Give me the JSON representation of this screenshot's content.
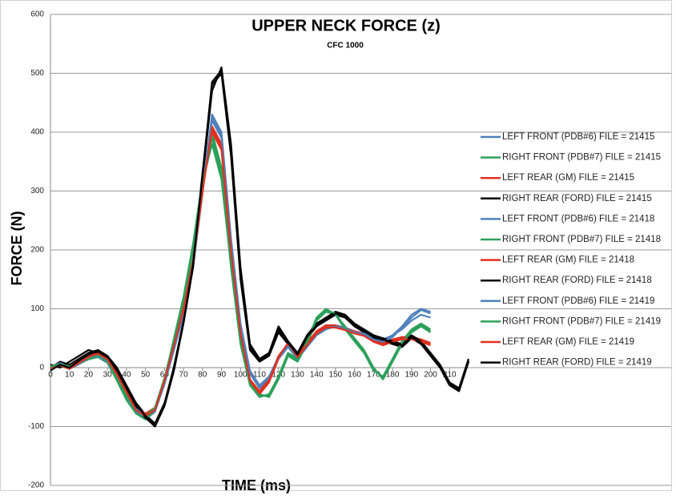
{
  "chart_data": {
    "type": "line",
    "title": "UPPER NECK FORCE (z)",
    "subtitle": "CFC 1000",
    "x_label": "TIME (ms)",
    "y_label": "FORCE (N)",
    "xlim": [
      0,
      220
    ],
    "xticks": [
      0,
      10,
      20,
      30,
      40,
      50,
      60,
      70,
      80,
      90,
      100,
      110,
      120,
      130,
      140,
      150,
      160,
      170,
      180,
      190,
      200,
      210
    ],
    "ylim": [
      -200,
      600
    ],
    "yticks": [
      -200,
      -100,
      0,
      100,
      200,
      300,
      400,
      500,
      600
    ],
    "grid": true,
    "legend": "right",
    "x": [
      0,
      5,
      10,
      15,
      20,
      25,
      30,
      35,
      40,
      45,
      50,
      55,
      60,
      65,
      70,
      75,
      80,
      85,
      90,
      95,
      100,
      105,
      110,
      115,
      120,
      125,
      130,
      135,
      140,
      145,
      150,
      155,
      160,
      165,
      170,
      175,
      180,
      185,
      190,
      195,
      200,
      205,
      210,
      215,
      220
    ],
    "series": [
      {
        "name": "LEFT FRONT (PDB#6) FILE = 21415",
        "color": "#4f81bd",
        "values": [
          0,
          5,
          0,
          8,
          18,
          22,
          12,
          -12,
          -45,
          -72,
          -85,
          -72,
          -25,
          35,
          95,
          175,
          300,
          420,
          390,
          210,
          70,
          -10,
          -35,
          -20,
          15,
          35,
          15,
          35,
          55,
          65,
          70,
          65,
          60,
          58,
          50,
          45,
          55,
          70,
          90,
          100,
          95,
          null,
          null,
          null,
          null
        ]
      },
      {
        "name": "RIGHT FRONT (PDB#7) FILE = 21415",
        "color": "#2ca05a",
        "values": [
          0,
          5,
          0,
          8,
          15,
          20,
          10,
          -20,
          -50,
          -75,
          -85,
          -70,
          -20,
          45,
          110,
          200,
          310,
          400,
          340,
          180,
          50,
          -25,
          -45,
          -50,
          -20,
          20,
          10,
          40,
          80,
          95,
          90,
          70,
          50,
          30,
          0,
          -20,
          10,
          40,
          60,
          70,
          60,
          null,
          null,
          null,
          null
        ]
      },
      {
        "name": "LEFT REAR (GM)  FILE = 21415",
        "color": "#e03020",
        "values": [
          0,
          5,
          0,
          10,
          20,
          25,
          15,
          -10,
          -40,
          -70,
          -80,
          -70,
          -20,
          40,
          100,
          180,
          300,
          410,
          380,
          200,
          60,
          -20,
          -40,
          -20,
          20,
          40,
          20,
          40,
          60,
          70,
          70,
          65,
          60,
          55,
          45,
          40,
          45,
          50,
          50,
          45,
          40,
          null,
          null,
          null,
          null
        ]
      },
      {
        "name": "RIGHT REAR (FORD) FILE = 21415",
        "color": "#000000",
        "values": [
          0,
          10,
          5,
          15,
          25,
          30,
          20,
          0,
          -30,
          -60,
          -80,
          -95,
          -60,
          0,
          80,
          180,
          330,
          480,
          500,
          360,
          150,
          30,
          10,
          20,
          60,
          40,
          20,
          50,
          70,
          80,
          90,
          85,
          70,
          60,
          50,
          45,
          40,
          35,
          50,
          40,
          20,
          0,
          -30,
          -40,
          10
        ]
      },
      {
        "name": "LEFT FRONT (PDB#6)  FILE = 21418",
        "color": "#4f81bd",
        "values": [
          2,
          8,
          2,
          10,
          20,
          24,
          14,
          -15,
          -50,
          -75,
          -88,
          -75,
          -28,
          30,
          90,
          170,
          295,
          430,
          400,
          220,
          75,
          -5,
          -30,
          -15,
          18,
          38,
          18,
          38,
          58,
          68,
          72,
          68,
          62,
          58,
          52,
          48,
          55,
          65,
          80,
          90,
          85,
          null,
          null,
          null,
          null
        ]
      },
      {
        "name": "RIGHT FRONT (PDB#7) FILE = 21418",
        "color": "#2ca05a",
        "values": [
          0,
          3,
          -2,
          6,
          14,
          18,
          8,
          -22,
          -55,
          -78,
          -88,
          -72,
          -22,
          50,
          120,
          210,
          320,
          390,
          330,
          170,
          40,
          -30,
          -50,
          -45,
          -15,
          25,
          15,
          45,
          85,
          100,
          90,
          65,
          45,
          25,
          -5,
          -15,
          15,
          45,
          65,
          75,
          65,
          null,
          null,
          null,
          null
        ]
      },
      {
        "name": "LEFT REAR (GM) FILE = 21418",
        "color": "#e03020",
        "values": [
          2,
          6,
          2,
          12,
          22,
          26,
          16,
          -8,
          -38,
          -68,
          -78,
          -68,
          -18,
          42,
          102,
          182,
          305,
          400,
          370,
          195,
          55,
          -25,
          -45,
          -25,
          15,
          38,
          22,
          42,
          62,
          72,
          72,
          66,
          62,
          56,
          46,
          42,
          48,
          52,
          52,
          48,
          42,
          null,
          null,
          null,
          null
        ]
      },
      {
        "name": "RIGHT REAR (FORD)  FILE = 21418",
        "color": "#000000",
        "values": [
          5,
          0,
          10,
          20,
          30,
          25,
          15,
          -5,
          -35,
          -65,
          -85,
          -100,
          -65,
          -5,
          75,
          170,
          320,
          470,
          510,
          380,
          170,
          40,
          15,
          25,
          70,
          45,
          25,
          55,
          75,
          85,
          95,
          90,
          75,
          65,
          55,
          50,
          45,
          40,
          55,
          45,
          25,
          5,
          -25,
          -35,
          15
        ]
      },
      {
        "name": "LEFT FRONT (PDB#6)  FILE = 21419",
        "color": "#4f81bd",
        "values": [
          -2,
          4,
          -2,
          6,
          16,
          20,
          10,
          -18,
          -48,
          -70,
          -82,
          -70,
          -22,
          38,
          98,
          178,
          305,
          425,
          395,
          215,
          72,
          -8,
          -32,
          -18,
          16,
          36,
          16,
          36,
          56,
          66,
          70,
          66,
          60,
          56,
          48,
          44,
          52,
          68,
          85,
          98,
          92,
          null,
          null,
          null,
          null
        ]
      },
      {
        "name": "RIGHT FRONT (PDB#7)  FILE = 21419",
        "color": "#2ca05a",
        "values": [
          2,
          6,
          2,
          10,
          16,
          22,
          12,
          -18,
          -48,
          -72,
          -82,
          -68,
          -18,
          48,
          115,
          205,
          315,
          380,
          320,
          175,
          45,
          -28,
          -48,
          -48,
          -18,
          22,
          12,
          42,
          82,
          98,
          92,
          68,
          48,
          28,
          -2,
          -18,
          12,
          42,
          62,
          72,
          62,
          null,
          null,
          null,
          null
        ]
      },
      {
        "name": "LEFT REAR (GM)  FILE = 21419",
        "color": "#e03020",
        "values": [
          -2,
          4,
          -2,
          8,
          18,
          24,
          14,
          -12,
          -42,
          -72,
          -82,
          -72,
          -22,
          38,
          98,
          178,
          298,
          405,
          375,
          198,
          58,
          -22,
          -42,
          -22,
          18,
          42,
          18,
          38,
          58,
          68,
          68,
          64,
          58,
          54,
          44,
          38,
          44,
          48,
          48,
          44,
          38,
          null,
          null,
          null,
          null
        ]
      },
      {
        "name": "RIGHT REAR (FORD) FILE = 21419",
        "color": "#000000",
        "values": [
          -5,
          5,
          0,
          12,
          22,
          28,
          18,
          -2,
          -32,
          -62,
          -82,
          -98,
          -62,
          2,
          78,
          175,
          325,
          485,
          505,
          370,
          160,
          35,
          12,
          22,
          65,
          42,
          22,
          52,
          72,
          82,
          92,
          88,
          72,
          62,
          52,
          48,
          42,
          38,
          52,
          42,
          22,
          2,
          -28,
          -38,
          12
        ]
      }
    ]
  }
}
